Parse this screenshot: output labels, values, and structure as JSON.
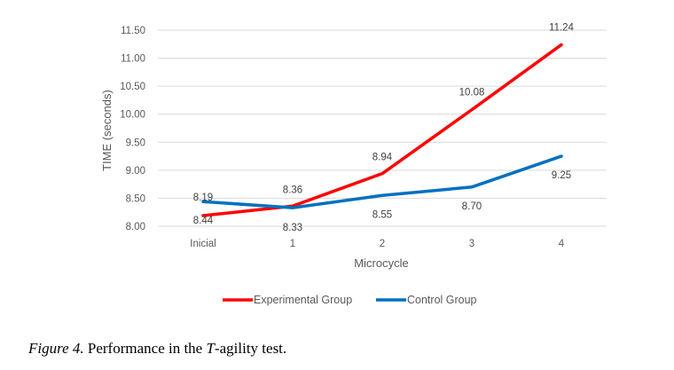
{
  "chart_data": {
    "type": "line",
    "categories": [
      "Inicial",
      "1",
      "2",
      "3",
      "4"
    ],
    "series": [
      {
        "name": "Experimental Group",
        "color": "#ff0000",
        "values": [
          8.19,
          8.36,
          8.94,
          10.08,
          11.24
        ]
      },
      {
        "name": "Control Group",
        "color": "#0070c0",
        "values": [
          8.44,
          8.33,
          8.55,
          8.7,
          9.25
        ]
      }
    ],
    "xlabel": "Microcycle",
    "ylabel": "TIME (seconds)",
    "ylim": [
      8.0,
      11.5
    ],
    "yticks": [
      "8.00",
      "8.50",
      "9.00",
      "9.50",
      "10.00",
      "10.50",
      "11.00",
      "11.50"
    ],
    "grid": true,
    "legend": "bottom"
  },
  "caption": {
    "label": "Figure 4.",
    "text_before": " Performance in the ",
    "emph": "T",
    "text_after": "-agility test."
  }
}
